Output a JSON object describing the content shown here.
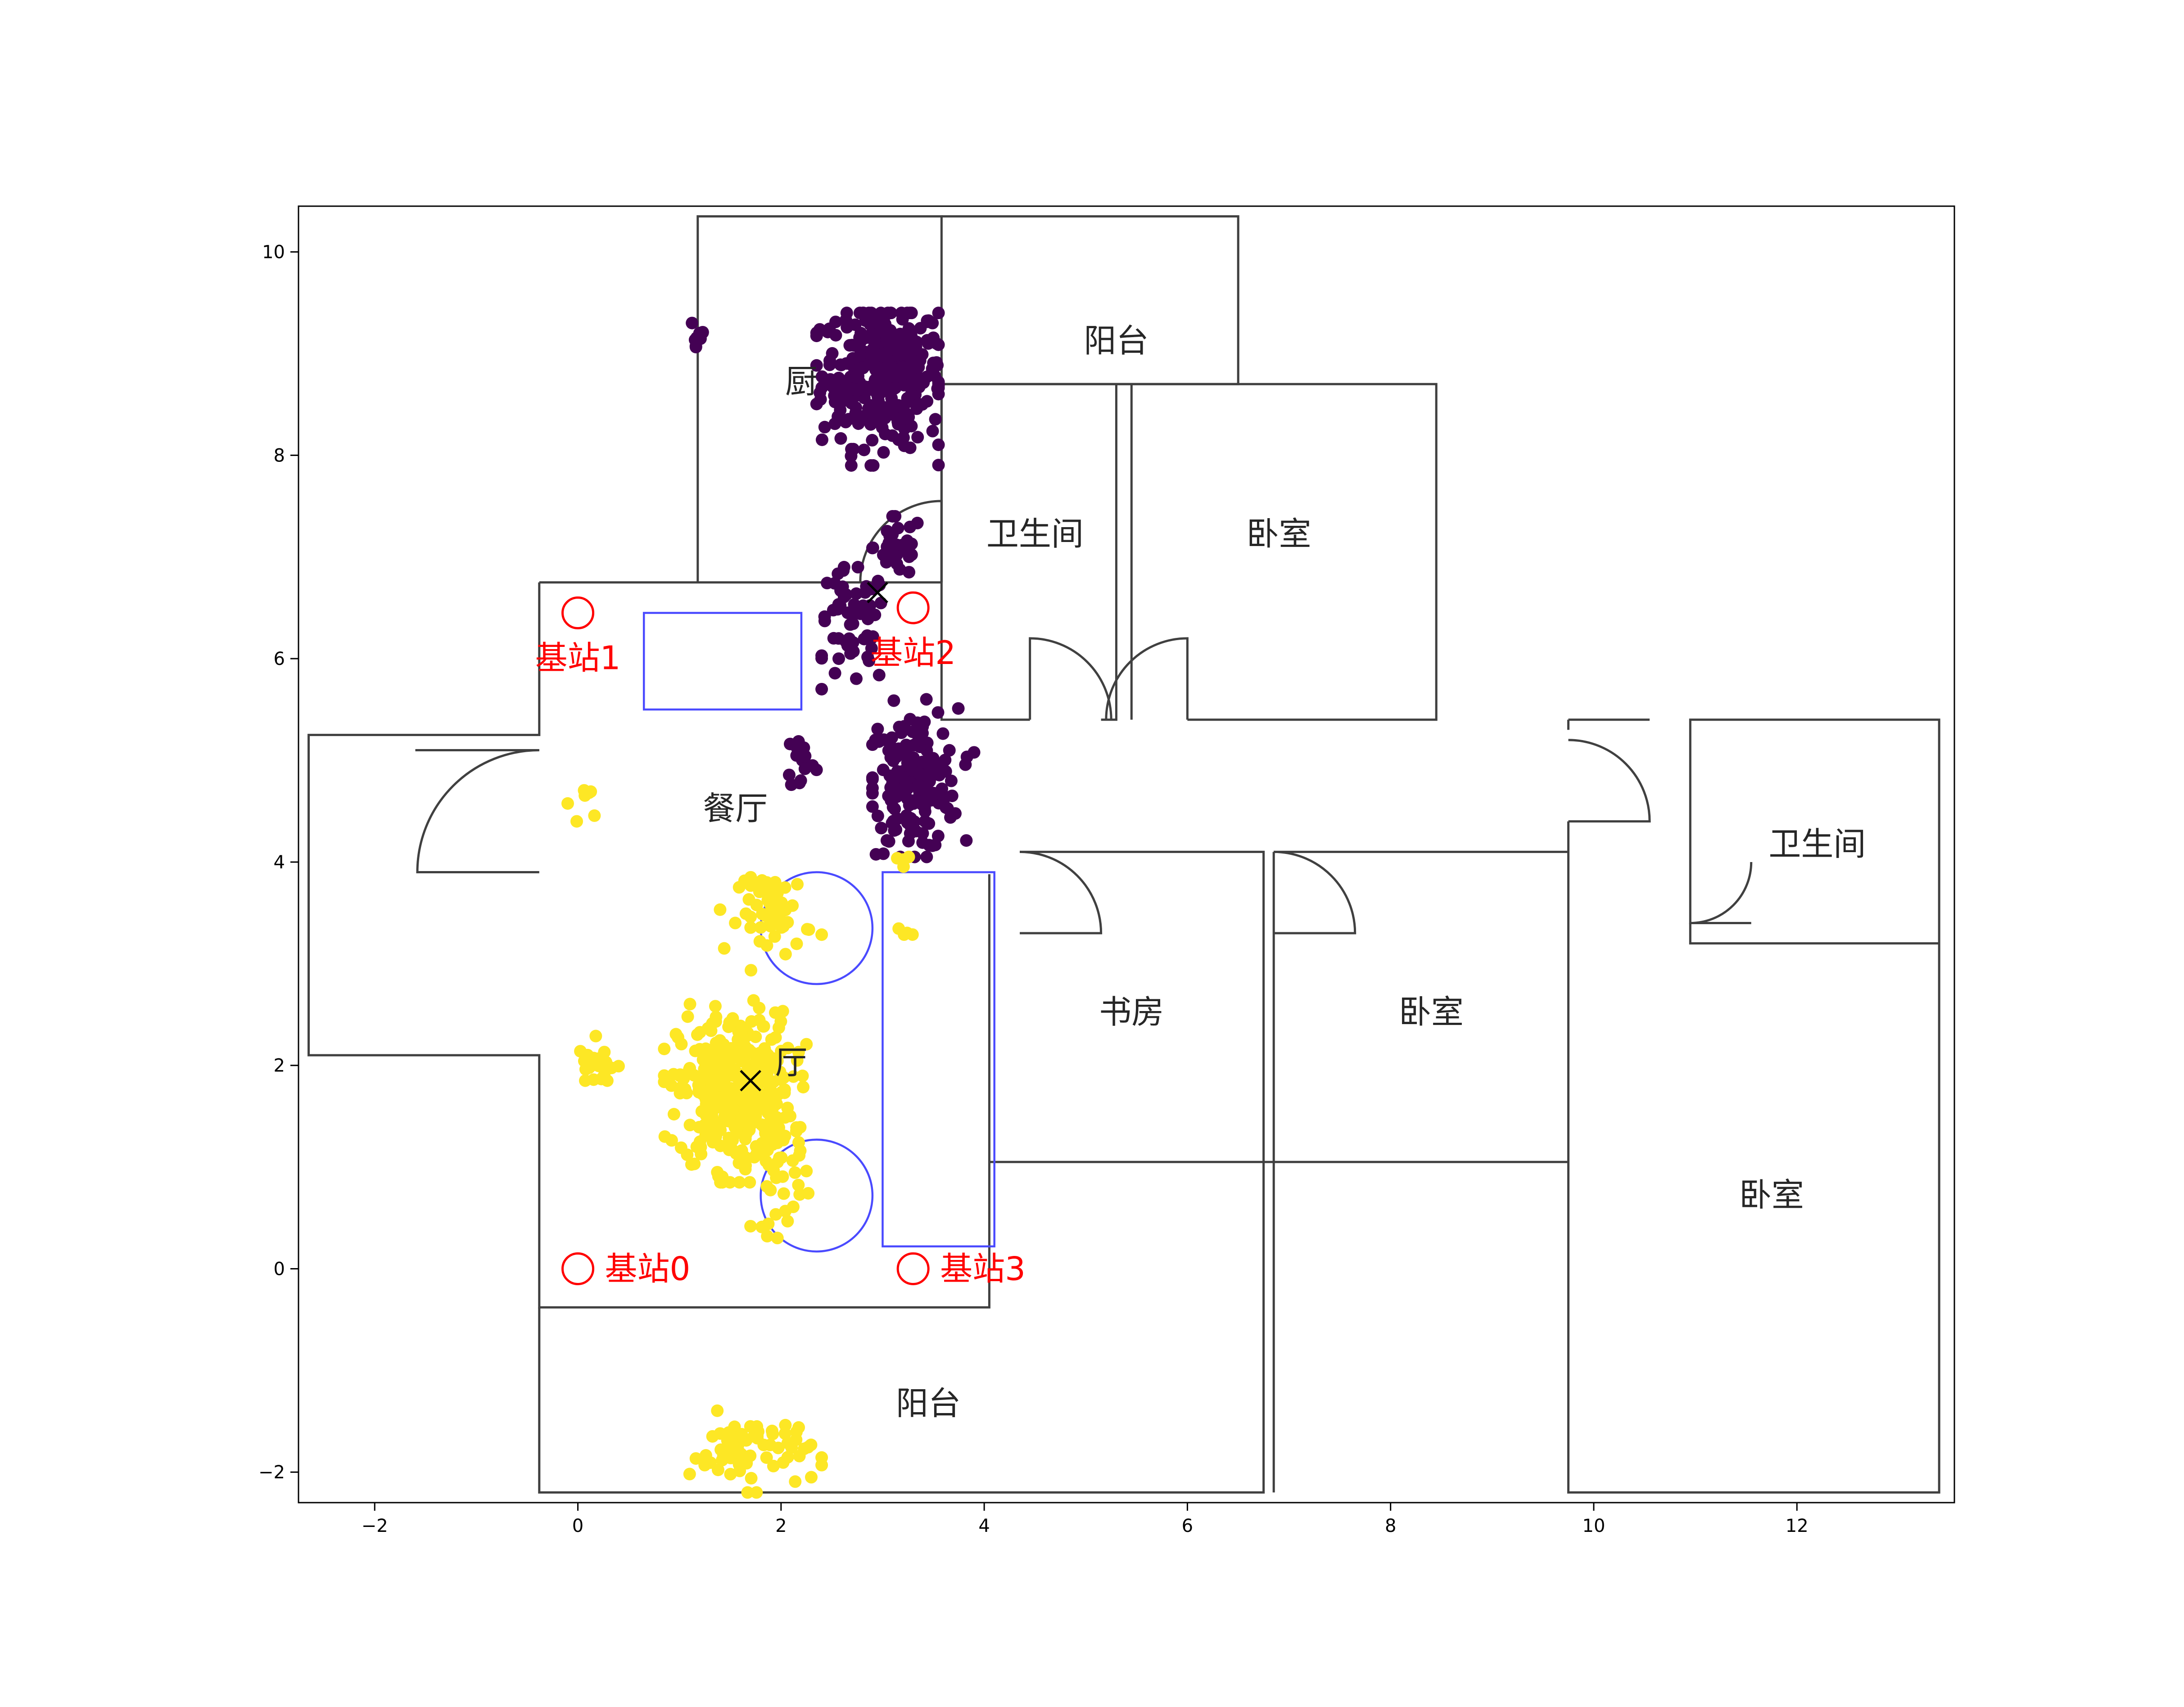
{
  "chart_data": {
    "type": "scatter",
    "title": "",
    "xlabel": "",
    "ylabel": "",
    "xlim": [
      -2.75,
      13.55
    ],
    "ylim": [
      -2.3,
      10.45
    ],
    "xticks": [
      -2,
      0,
      2,
      4,
      6,
      8,
      10,
      12
    ],
    "yticks": [
      -2,
      0,
      2,
      4,
      6,
      8,
      10
    ],
    "grid": false,
    "legend": "none",
    "colors": {
      "cluster_0": "#440154",
      "cluster_1": "#fde725",
      "walls": "#404040",
      "furniture": "#4a4aff",
      "stations": "#ff0000",
      "centroids": "#000000"
    },
    "rooms": [
      {
        "label": "阳台",
        "x": 5.3,
        "y": 9.1
      },
      {
        "label": "厨",
        "x": 2.2,
        "y": 8.7
      },
      {
        "label": "卫生间",
        "x": 4.5,
        "y": 7.2
      },
      {
        "label": "卧室",
        "x": 6.9,
        "y": 7.2
      },
      {
        "label": "餐厅",
        "x": 1.55,
        "y": 4.5
      },
      {
        "label": "卫生间",
        "x": 12.2,
        "y": 4.15
      },
      {
        "label": "书房",
        "x": 5.45,
        "y": 2.5
      },
      {
        "label": "卧室",
        "x": 8.4,
        "y": 2.5
      },
      {
        "label": "厅",
        "x": 2.1,
        "y": 2.0
      },
      {
        "label": "卧室",
        "x": 11.75,
        "y": 0.7
      },
      {
        "label": "阳台",
        "x": 3.45,
        "y": -1.35
      }
    ],
    "base_stations": [
      {
        "label": "基站0",
        "x": 0.0,
        "y": 0.0,
        "label_side": "right"
      },
      {
        "label": "基站1",
        "x": 0.0,
        "y": 6.45,
        "label_side": "below"
      },
      {
        "label": "基站2",
        "x": 3.3,
        "y": 6.5,
        "label_side": "below"
      },
      {
        "label": "基站3",
        "x": 3.3,
        "y": 0.0,
        "label_side": "right"
      }
    ],
    "centroids": [
      {
        "cluster": 0,
        "x": 2.95,
        "y": 6.65
      },
      {
        "cluster": 1,
        "x": 1.7,
        "y": 1.85
      }
    ],
    "clusters": [
      {
        "id": 0,
        "color": "#440154",
        "groups": [
          {
            "cx": 3.0,
            "cy": 8.8,
            "sx": 0.3,
            "sy": 0.35,
            "n": 340,
            "xmin": 2.35,
            "xmax": 3.55,
            "ymin": 7.9,
            "ymax": 9.4
          },
          {
            "cx": 1.18,
            "cy": 9.2,
            "sx": 0.04,
            "sy": 0.12,
            "n": 10,
            "xmin": 1.1,
            "xmax": 1.3,
            "ymin": 8.9,
            "ymax": 9.45
          },
          {
            "cx": 3.15,
            "cy": 7.1,
            "sx": 0.12,
            "sy": 0.15,
            "n": 35,
            "xmin": 2.9,
            "xmax": 3.35,
            "ymin": 6.8,
            "ymax": 7.4
          },
          {
            "cx": 2.7,
            "cy": 6.3,
            "sx": 0.18,
            "sy": 0.3,
            "n": 60,
            "xmin": 2.4,
            "xmax": 3.2,
            "ymin": 5.7,
            "ymax": 6.9
          },
          {
            "cx": 3.3,
            "cy": 4.8,
            "sx": 0.22,
            "sy": 0.35,
            "n": 190,
            "xmin": 2.9,
            "xmax": 3.9,
            "ymin": 4.05,
            "ymax": 5.6
          },
          {
            "cx": 2.2,
            "cy": 5.0,
            "sx": 0.07,
            "sy": 0.15,
            "n": 15,
            "xmin": 2.0,
            "xmax": 2.4,
            "ymin": 4.7,
            "ymax": 5.3
          }
        ]
      },
      {
        "id": 1,
        "color": "#fde725",
        "groups": [
          {
            "cx": 1.55,
            "cy": 1.75,
            "sx": 0.28,
            "sy": 0.38,
            "n": 380,
            "xmin": 0.85,
            "xmax": 2.25,
            "ymin": 0.85,
            "ymax": 2.8
          },
          {
            "cx": 1.95,
            "cy": 3.5,
            "sx": 0.18,
            "sy": 0.2,
            "n": 60,
            "xmin": 1.4,
            "xmax": 2.4,
            "ymin": 2.9,
            "ymax": 3.85
          },
          {
            "cx": 2.0,
            "cy": 0.85,
            "sx": 0.15,
            "sy": 0.25,
            "n": 30,
            "xmin": 1.7,
            "xmax": 2.3,
            "ymin": 0.3,
            "ymax": 1.5
          },
          {
            "cx": 0.2,
            "cy": 2.0,
            "sx": 0.1,
            "sy": 0.12,
            "n": 22,
            "xmin": -0.1,
            "xmax": 0.45,
            "ymin": 1.85,
            "ymax": 2.3
          },
          {
            "cx": 0.1,
            "cy": 4.6,
            "sx": 0.1,
            "sy": 0.1,
            "n": 7,
            "xmin": -0.1,
            "xmax": 0.3,
            "ymin": 4.4,
            "ymax": 4.85
          },
          {
            "cx": 1.7,
            "cy": -1.8,
            "sx": 0.3,
            "sy": 0.18,
            "n": 70,
            "xmin": 1.0,
            "xmax": 2.4,
            "ymin": -2.2,
            "ymax": -1.2
          },
          {
            "cx": 3.2,
            "cy": 3.3,
            "sx": 0.04,
            "sy": 0.04,
            "n": 4,
            "xmin": 3.1,
            "xmax": 3.3,
            "ymin": 3.2,
            "ymax": 3.4
          },
          {
            "cx": 3.2,
            "cy": 4.0,
            "sx": 0.05,
            "sy": 0.05,
            "n": 4,
            "xmin": 3.05,
            "xmax": 3.5,
            "ymin": 3.9,
            "ymax": 4.05
          }
        ]
      }
    ]
  }
}
